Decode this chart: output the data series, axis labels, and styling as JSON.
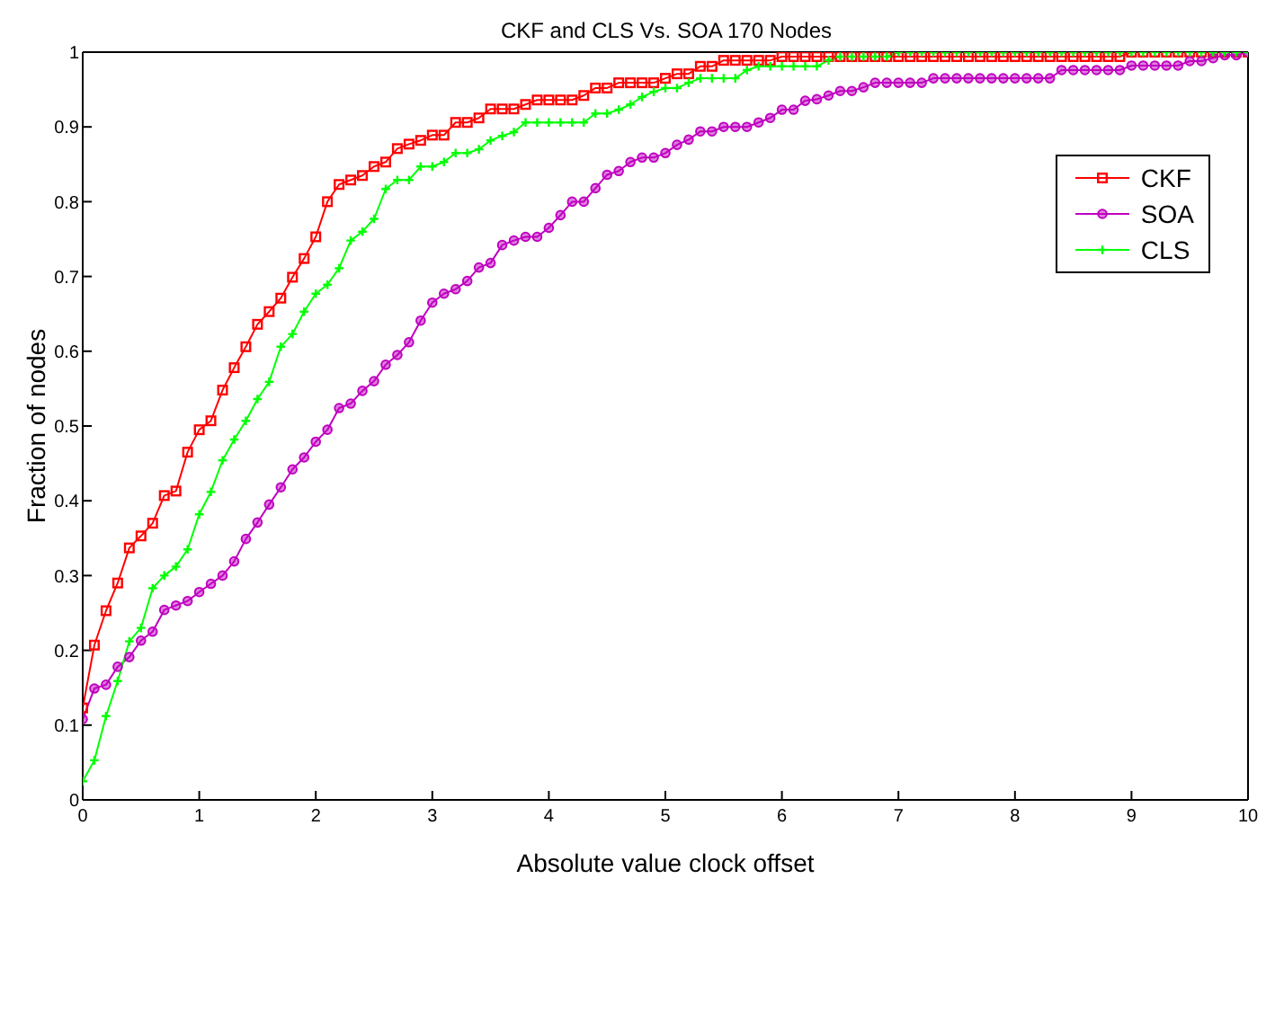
{
  "chart_data": {
    "type": "line",
    "title": "CKF and CLS Vs. SOA 170 Nodes",
    "xlabel": "Absolute value clock offset",
    "ylabel": "Fraction of nodes",
    "x": [
      0,
      0.1,
      0.2,
      0.3,
      0.4,
      0.5,
      0.6,
      0.7,
      0.8,
      0.9,
      1,
      1.1,
      1.2,
      1.3,
      1.4,
      1.5,
      1.6,
      1.7,
      1.8,
      1.9,
      2,
      2.1,
      2.2,
      2.3,
      2.4,
      2.5,
      2.6,
      2.7,
      2.8,
      2.9,
      3,
      3.1,
      3.2,
      3.3,
      3.4,
      3.5,
      3.6,
      3.7,
      3.8,
      3.9,
      4,
      4.1,
      4.2,
      4.3,
      4.4,
      4.5,
      4.6,
      4.7,
      4.8,
      4.9,
      5,
      5.1,
      5.2,
      5.3,
      5.4,
      5.5,
      5.6,
      5.7,
      5.8,
      5.9,
      6,
      6.1,
      6.2,
      6.3,
      6.4,
      6.5,
      6.6,
      6.7,
      6.8,
      6.9,
      7,
      7.1,
      7.2,
      7.3,
      7.4,
      7.5,
      7.6,
      7.7,
      7.8,
      7.9,
      8,
      8.1,
      8.2,
      8.3,
      8.4,
      8.5,
      8.6,
      8.7,
      8.8,
      8.9,
      9,
      9.1,
      9.2,
      9.3,
      9.4,
      9.5,
      9.6,
      9.7,
      9.8,
      9.9,
      10
    ],
    "series": [
      {
        "name": "CKF",
        "color": "#ff0000",
        "marker": "square",
        "values": [
          0.123,
          0.207,
          0.253,
          0.29,
          0.337,
          0.353,
          0.37,
          0.407,
          0.413,
          0.465,
          0.495,
          0.507,
          0.548,
          0.578,
          0.606,
          0.636,
          0.653,
          0.671,
          0.699,
          0.724,
          0.753,
          0.8,
          0.823,
          0.829,
          0.835,
          0.847,
          0.853,
          0.871,
          0.877,
          0.882,
          0.889,
          0.889,
          0.906,
          0.906,
          0.912,
          0.924,
          0.924,
          0.924,
          0.93,
          0.936,
          0.936,
          0.936,
          0.936,
          0.942,
          0.952,
          0.952,
          0.959,
          0.959,
          0.959,
          0.959,
          0.965,
          0.971,
          0.971,
          0.981,
          0.981,
          0.989,
          0.989,
          0.989,
          0.989,
          0.989,
          0.994,
          0.994,
          0.994,
          0.994,
          0.994,
          0.994,
          0.994,
          0.994,
          0.994,
          0.994,
          0.994,
          0.994,
          0.994,
          0.994,
          0.994,
          0.994,
          0.994,
          0.994,
          0.994,
          0.994,
          0.994,
          0.994,
          0.994,
          0.994,
          0.994,
          0.994,
          0.994,
          0.994,
          0.994,
          0.994,
          1,
          1,
          1,
          1,
          1,
          1,
          1,
          1,
          1,
          1,
          1
        ]
      },
      {
        "name": "SOA",
        "color": "#bf00bf",
        "marker": "circle",
        "values": [
          0.108,
          0.149,
          0.154,
          0.178,
          0.191,
          0.213,
          0.225,
          0.254,
          0.26,
          0.266,
          0.278,
          0.289,
          0.3,
          0.319,
          0.349,
          0.371,
          0.395,
          0.418,
          0.442,
          0.458,
          0.479,
          0.495,
          0.524,
          0.53,
          0.547,
          0.56,
          0.582,
          0.595,
          0.612,
          0.641,
          0.665,
          0.677,
          0.683,
          0.694,
          0.712,
          0.718,
          0.742,
          0.748,
          0.753,
          0.753,
          0.765,
          0.782,
          0.8,
          0.8,
          0.818,
          0.836,
          0.841,
          0.853,
          0.859,
          0.859,
          0.865,
          0.876,
          0.883,
          0.894,
          0.894,
          0.9,
          0.9,
          0.9,
          0.906,
          0.912,
          0.923,
          0.923,
          0.935,
          0.937,
          0.942,
          0.948,
          0.948,
          0.953,
          0.959,
          0.959,
          0.959,
          0.959,
          0.959,
          0.965,
          0.965,
          0.965,
          0.965,
          0.965,
          0.965,
          0.965,
          0.965,
          0.965,
          0.965,
          0.965,
          0.976,
          0.976,
          0.976,
          0.976,
          0.976,
          0.976,
          0.982,
          0.982,
          0.982,
          0.982,
          0.982,
          0.988,
          0.988,
          0.992,
          0.996,
          0.996,
          1
        ]
      },
      {
        "name": "CLS",
        "color": "#00ff00",
        "marker": "cross",
        "values": [
          0.025,
          0.053,
          0.112,
          0.159,
          0.212,
          0.23,
          0.283,
          0.3,
          0.312,
          0.335,
          0.382,
          0.412,
          0.454,
          0.482,
          0.507,
          0.536,
          0.559,
          0.606,
          0.623,
          0.653,
          0.677,
          0.689,
          0.711,
          0.748,
          0.76,
          0.777,
          0.817,
          0.829,
          0.829,
          0.847,
          0.847,
          0.853,
          0.865,
          0.865,
          0.87,
          0.882,
          0.888,
          0.893,
          0.906,
          0.906,
          0.906,
          0.906,
          0.906,
          0.906,
          0.918,
          0.918,
          0.923,
          0.93,
          0.94,
          0.947,
          0.952,
          0.952,
          0.959,
          0.965,
          0.965,
          0.965,
          0.965,
          0.976,
          0.981,
          0.981,
          0.981,
          0.981,
          0.981,
          0.981,
          0.989,
          0.994,
          0.994,
          0.994,
          0.994,
          0.994,
          1,
          1,
          1,
          1,
          1,
          1,
          1,
          1,
          1,
          1,
          1,
          1,
          1,
          1,
          1,
          1,
          1,
          1,
          1,
          1,
          1,
          1,
          1,
          1,
          1,
          1,
          1,
          1,
          1,
          1,
          1
        ]
      }
    ],
    "xlim": [
      0,
      10
    ],
    "xticks": [
      0,
      1,
      2,
      3,
      4,
      5,
      6,
      7,
      8,
      9,
      10
    ],
    "ylim": [
      0,
      1
    ],
    "yticks": [
      0,
      0.1,
      0.2,
      0.3,
      0.4,
      0.5,
      0.6,
      0.7,
      0.8,
      0.9,
      1
    ],
    "grid": false,
    "legend": "top right",
    "line_style": "solid"
  }
}
